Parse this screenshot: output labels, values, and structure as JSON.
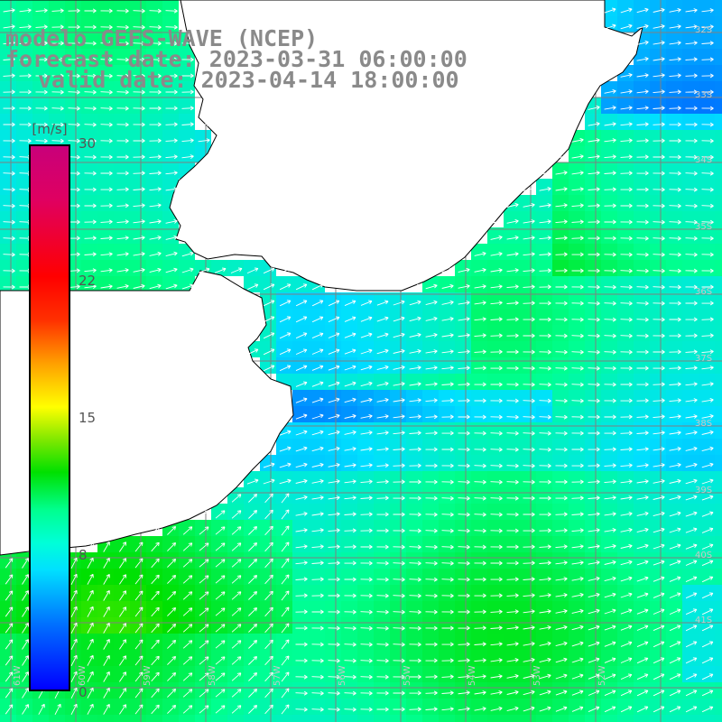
{
  "title": {
    "line1": "modelo GEFS-WAVE (NCEP)",
    "line2": "forecast date: 2023-03-31 06:00:00",
    "line3": "valid date: 2023-04-14 18:00:00"
  },
  "colorbar": {
    "unit": "[m/s]",
    "ticks": [
      "30",
      "22",
      "15",
      "8",
      "0"
    ],
    "tick_values": [
      30,
      22,
      15,
      8,
      0
    ],
    "colors": [
      "#0000ff",
      "#00e0ff",
      "#00ff90",
      "#00e000",
      "#ffff00",
      "#ff0000",
      "#c8007a"
    ]
  },
  "map": {
    "field": "wind speed (m/s)",
    "land_color": "#ffffff",
    "coastline_color": "#000000",
    "grid_color": "#808080",
    "arrow_color": "#ffffff",
    "lat_labels_right": [
      "32S",
      "33S",
      "34S",
      "35S",
      "36S",
      "37S",
      "38S",
      "39S",
      "40S",
      "41S"
    ],
    "lon_labels_bottom": [
      "61W",
      "60W",
      "59W",
      "58W",
      "57W",
      "56W",
      "55W",
      "54W",
      "53W",
      "52W"
    ]
  }
}
